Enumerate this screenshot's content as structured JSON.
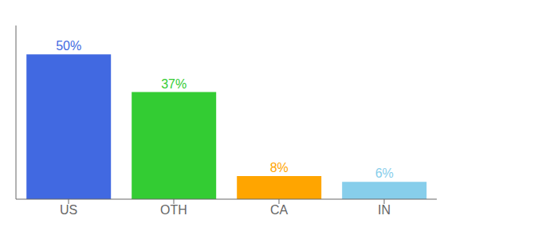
{
  "chart_data": {
    "type": "bar",
    "categories": [
      "US",
      "OTH",
      "CA",
      "IN"
    ],
    "values": [
      50,
      37,
      8,
      6
    ],
    "value_labels": [
      "50%",
      "37%",
      "8%",
      "6%"
    ],
    "colors": [
      "#4169e1",
      "#33cc33",
      "#ffa500",
      "#87ceeb"
    ],
    "ylim": [
      0,
      60
    ],
    "data_labels": true,
    "tick_labels": "x",
    "grid": false
  }
}
